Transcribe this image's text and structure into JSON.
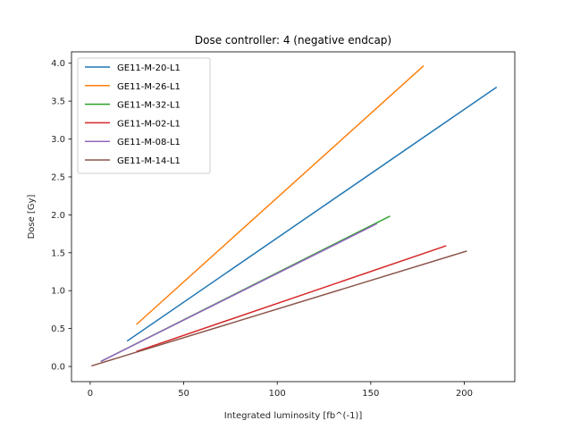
{
  "chart_data": {
    "type": "line",
    "title": "Dose controller: 4 (negative endcap)",
    "xlabel": "Integrated luminosity [fb^(-1)]",
    "ylabel": "Dose [Gy]",
    "xlim": [
      -10,
      227
    ],
    "ylim": [
      -0.2,
      4.15
    ],
    "xticks": [
      0,
      50,
      100,
      150,
      200
    ],
    "yticks": [
      0.0,
      0.5,
      1.0,
      1.5,
      2.0,
      2.5,
      3.0,
      3.5,
      4.0
    ],
    "xtick_labels": [
      "0",
      "50",
      "100",
      "150",
      "200"
    ],
    "ytick_labels": [
      "0.0",
      "0.5",
      "1.0",
      "1.5",
      "2.0",
      "2.5",
      "3.0",
      "3.5",
      "4.0"
    ],
    "grid": false,
    "legend": "top-left",
    "series": [
      {
        "name": "GE11-M-20-L1",
        "color": "#1f77b4",
        "x": [
          20,
          217
        ],
        "y": [
          0.34,
          3.68
        ]
      },
      {
        "name": "GE11-M-26-L1",
        "color": "#ff7f0e",
        "x": [
          25,
          178
        ],
        "y": [
          0.56,
          3.96
        ]
      },
      {
        "name": "GE11-M-32-L1",
        "color": "#2ca02c",
        "x": [
          6,
          160
        ],
        "y": [
          0.07,
          1.98
        ]
      },
      {
        "name": "GE11-M-02-L1",
        "color": "#d62728",
        "x": [
          25,
          190
        ],
        "y": [
          0.2,
          1.59
        ]
      },
      {
        "name": "GE11-M-08-L1",
        "color": "#9467bd",
        "x": [
          6,
          153
        ],
        "y": [
          0.07,
          1.88
        ]
      },
      {
        "name": "GE11-M-14-L1",
        "color": "#8c564b",
        "x": [
          1,
          201
        ],
        "y": [
          0.01,
          1.52
        ]
      }
    ]
  }
}
